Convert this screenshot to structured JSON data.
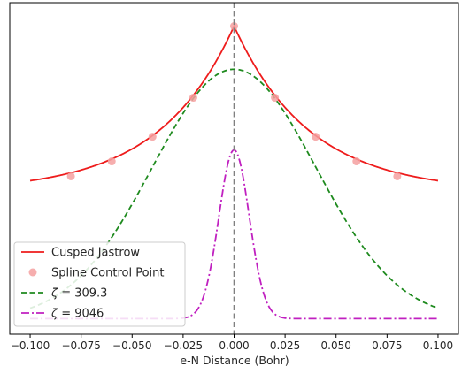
{
  "chart_data": {
    "type": "line",
    "title": "",
    "xlabel": "e-N Distance (Bohr)",
    "ylabel": "",
    "xlim": [
      -0.11,
      0.11
    ],
    "ylim": [
      -0.05,
      1.08
    ],
    "x_tick_labels": [
      "−0.100",
      "−0.075",
      "−0.050",
      "−0.025",
      "0.000",
      "0.025",
      "0.050",
      "0.075",
      "0.100"
    ],
    "x_tick_values": [
      -0.1,
      -0.075,
      -0.05,
      -0.025,
      0.0,
      0.025,
      0.05,
      0.075,
      0.1
    ],
    "y_ticks_shown": false,
    "grid": false,
    "legend_placement": "lower-left",
    "vertical_reference_line": {
      "x": 0.0,
      "style": "dashed",
      "color": "#808080"
    },
    "series": [
      {
        "name": "Cusped Jastrow",
        "kind": "line",
        "style": "solid",
        "color": "#ee1c1c",
        "function": "exponential-cusp",
        "params": {
          "amplitude": 1.0,
          "baseline": 0.435,
          "decay": 27.0
        },
        "x_range": [
          -0.1,
          0.1
        ]
      },
      {
        "name": "Spline Control Point",
        "kind": "scatter",
        "color": "#f4a0a0",
        "x": [
          -0.08,
          -0.06,
          -0.04,
          -0.02,
          0.0,
          0.02,
          0.04,
          0.06,
          0.08
        ],
        "y": [
          0.488,
          0.539,
          0.623,
          0.756,
          1.0,
          0.756,
          0.623,
          0.539,
          0.488
        ]
      },
      {
        "name": "ζ = 309.3",
        "label_prefix": "ζ",
        "label_value": " = 309.3",
        "kind": "line",
        "style": "dashed",
        "color": "#1e8a1e",
        "function": "gaussian",
        "params": {
          "zeta": 309.3,
          "peak": 0.853,
          "baseline": 0.0
        },
        "x_range": [
          -0.1,
          0.1
        ]
      },
      {
        "name": "ζ = 9046",
        "label_prefix": "ζ",
        "label_value": " = 9046",
        "kind": "line",
        "style": "dashdot",
        "color": "#c020c0",
        "function": "gaussian",
        "params": {
          "zeta": 9046,
          "peak": 0.578,
          "baseline": 0.003
        },
        "x_range": [
          -0.1,
          0.1
        ]
      }
    ]
  }
}
